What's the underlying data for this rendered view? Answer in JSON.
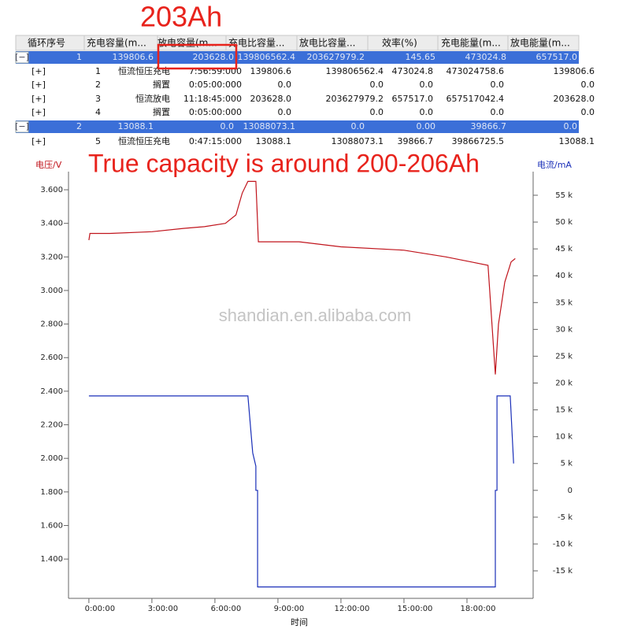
{
  "annotations": {
    "capacity": "203Ah",
    "note": "True capacity is around 200-206Ah",
    "watermark": "shandian.en.alibaba.com"
  },
  "table": {
    "header": [
      "循环序号",
      "充电容量(m...",
      "放电容量(m...",
      "充电比容量...",
      "放电比容量...",
      "效率(%)",
      "充电能量(m...",
      "放电能量(m..."
    ],
    "rows": [
      [
        "[−]",
        "1",
        "139806.6",
        "203628.0",
        "139806562.4",
        "203627979.2",
        "145.65",
        "473024.8",
        "657517.0"
      ],
      [
        "[+]",
        "1",
        "恒流恒压充电",
        "7:56:59:000",
        "139806.6",
        "139806562.4",
        "473024.8",
        "473024758.6",
        "139806.6"
      ],
      [
        "[+]",
        "2",
        "搁置",
        "0:05:00:000",
        "0.0",
        "0.0",
        "0.0",
        "0.0",
        "0.0"
      ],
      [
        "[+]",
        "3",
        "恒流放电",
        "11:18:45:000",
        "203628.0",
        "203627979.2",
        "657517.0",
        "657517042.4",
        "203628.0"
      ],
      [
        "[+]",
        "4",
        "搁置",
        "0:05:00:000",
        "0.0",
        "0.0",
        "0.0",
        "0.0",
        "0.0"
      ],
      [
        "[−]",
        "2",
        "13088.1",
        "0.0",
        "13088073.1",
        "0.0",
        "0.00",
        "39866.7",
        "0.0"
      ],
      [
        "[+]",
        "5",
        "恒流恒压充电",
        "0:47:15:000",
        "13088.1",
        "13088073.1",
        "39866.7",
        "39866725.5",
        "13088.1"
      ]
    ]
  },
  "chart_data": {
    "type": "line",
    "x_label": "时间",
    "y_label": "电压/V",
    "y2_label": "电流/mA",
    "xlim": [
      -0.97,
      21.15
    ],
    "xticks": [
      {
        "value": 0,
        "label": "0:00:00"
      },
      {
        "value": 3,
        "label": "3:00:00"
      },
      {
        "value": 6,
        "label": "6:00:00"
      },
      {
        "value": 9,
        "label": "9:00:00"
      },
      {
        "value": 12,
        "label": "12:00:00"
      },
      {
        "value": 15,
        "label": "15:00:00"
      },
      {
        "value": 18,
        "label": "18:00:00"
      }
    ],
    "ylim": [
      1.166,
      3.708
    ],
    "yticks": [
      {
        "value": 1.4,
        "label": "1.400"
      },
      {
        "value": 1.6,
        "label": "1.600"
      },
      {
        "value": 1.8,
        "label": "1.800"
      },
      {
        "value": 2.0,
        "label": "2.000"
      },
      {
        "value": 2.2,
        "label": "2.200"
      },
      {
        "value": 2.4,
        "label": "2.400"
      },
      {
        "value": 2.6,
        "label": "2.600"
      },
      {
        "value": 2.8,
        "label": "2.800"
      },
      {
        "value": 3.0,
        "label": "3.000"
      },
      {
        "value": 3.2,
        "label": "3.200"
      },
      {
        "value": 3.4,
        "label": "3.400"
      },
      {
        "value": 3.6,
        "label": "3.600"
      }
    ],
    "y2lim": [
      -20130,
      59400
    ],
    "y2ticks": [
      {
        "value": -15000,
        "label": "-15 k"
      },
      {
        "value": -10000,
        "label": "-10 k"
      },
      {
        "value": -5000,
        "label": "-5 k"
      },
      0,
      {
        "value": 5000,
        "label": "5 k"
      },
      {
        "value": 10000,
        "label": "10 k"
      },
      {
        "value": 15000,
        "label": "15 k"
      },
      {
        "value": 20000,
        "label": "20 k"
      },
      {
        "value": 25000,
        "label": "25 k"
      },
      {
        "value": 30000,
        "label": "30 k"
      },
      {
        "value": 35000,
        "label": "35 k"
      },
      {
        "value": 40000,
        "label": "40 k"
      },
      {
        "value": 45000,
        "label": "45 k"
      },
      {
        "value": 50000,
        "label": "50 k"
      },
      {
        "value": 55000,
        "label": "55 k"
      }
    ],
    "grid": false,
    "series": [
      {
        "color": "#c0141c",
        "axis": "y",
        "x": [
          0,
          0.05,
          1,
          3,
          4.5,
          5.5,
          6.5,
          7.0,
          7.3,
          7.57,
          7.95,
          8.07,
          10,
          12,
          15,
          17,
          18.2,
          19.0,
          19.35,
          19.5,
          19.8,
          20.1,
          20.3
        ],
        "values": [
          3.3,
          3.34,
          3.34,
          3.35,
          3.37,
          3.38,
          3.4,
          3.45,
          3.58,
          3.65,
          3.65,
          3.29,
          3.29,
          3.26,
          3.24,
          3.2,
          3.17,
          3.15,
          2.5,
          2.8,
          3.05,
          3.17,
          3.19
        ]
      },
      {
        "color": "#1a2fb8",
        "axis": "y2",
        "x": [
          0,
          7.57,
          7.8,
          7.95,
          7.95,
          8.03,
          8.03,
          19.35,
          19.35,
          19.43,
          19.43,
          20.06,
          20.22
        ],
        "values": [
          17600,
          17600,
          7000,
          4500,
          0,
          0,
          -18000,
          -18000,
          0,
          0,
          17600,
          17600,
          5000
        ]
      }
    ]
  }
}
